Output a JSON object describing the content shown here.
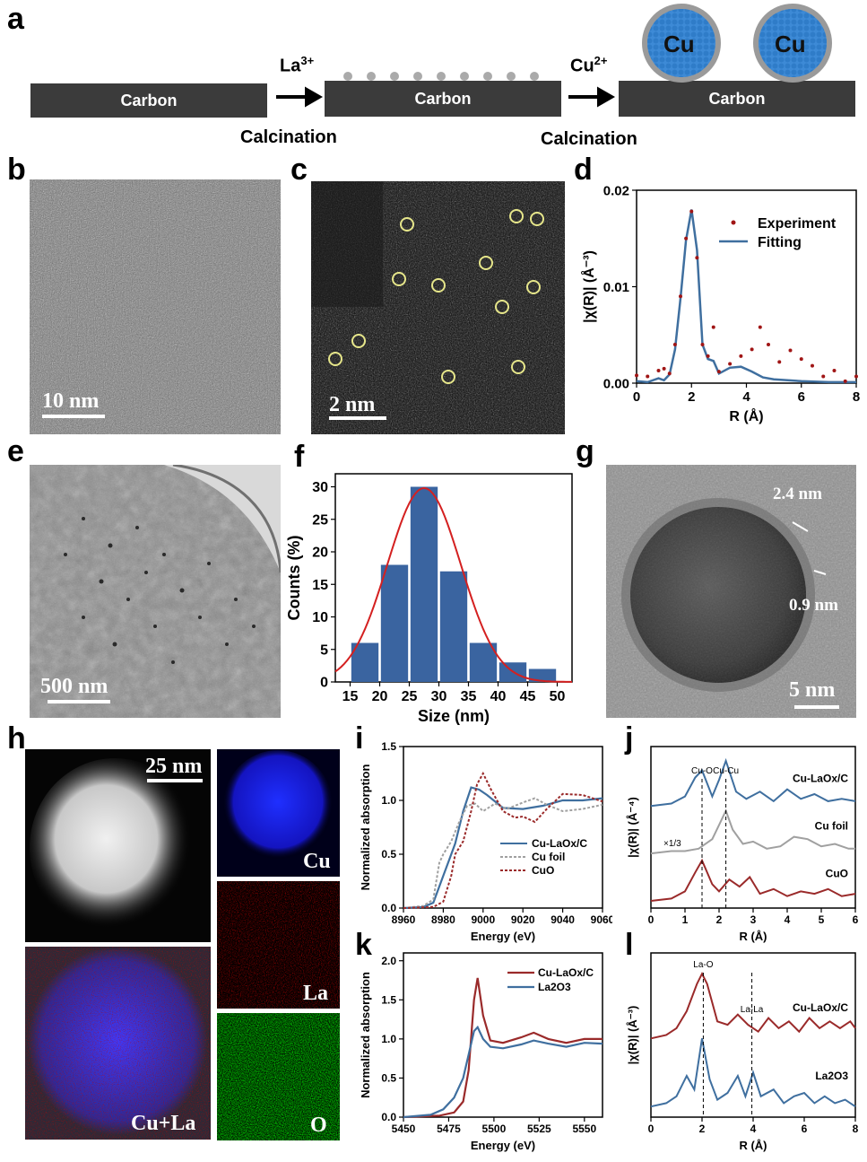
{
  "panels": {
    "a": "a",
    "b": "b",
    "c": "c",
    "d": "d",
    "e": "e",
    "f": "f",
    "g": "g",
    "h": "h",
    "i": "i",
    "j": "j",
    "k": "k",
    "l": "l"
  },
  "scheme": {
    "carbon_label": "Carbon",
    "ion1_base": "La",
    "ion1_sup": "3+",
    "ion2_base": "Cu",
    "ion2_sup": "2+",
    "step_label": "Calcination",
    "particle_label": "Cu"
  },
  "scalebars": {
    "b": "10 nm",
    "c": "2 nm",
    "e": "500 nm",
    "g": "5 nm",
    "h": "25 nm"
  },
  "panel_g": {
    "shell_label": "2.4 nm",
    "gap_label": "0.9 nm"
  },
  "panel_h": {
    "cu": "Cu",
    "la": "La",
    "o": "O",
    "overlay": "Cu+La"
  },
  "colors": {
    "blue": "#3f6f9f",
    "darkred": "#9a2a2a",
    "red_fit": "#d42020",
    "bar": "#3a64a0",
    "grey": "#a0a0a0",
    "experiment_dot": "#a01515"
  },
  "chart_data": [
    {
      "id": "d",
      "type": "line",
      "xlabel": "R (Å)",
      "ylabel": "|χ(R)| (Å⁻³)",
      "xlim": [
        0,
        8
      ],
      "ylim": [
        0,
        0.02
      ],
      "xticks": [
        "0",
        "2",
        "4",
        "6",
        "8"
      ],
      "yticks": [
        "0.00",
        "0.01",
        "0.02"
      ],
      "series": [
        {
          "name": "Experiment",
          "style": "dots",
          "x": [
            0,
            0.4,
            0.8,
            1.0,
            1.2,
            1.4,
            1.6,
            1.8,
            2.0,
            2.2,
            2.4,
            2.6,
            2.8,
            3.0,
            3.4,
            3.8,
            4.2,
            4.5,
            4.8,
            5.2,
            5.6,
            6.0,
            6.4,
            6.8,
            7.2,
            7.6,
            8.0
          ],
          "y": [
            0.0008,
            0.0007,
            0.0013,
            0.0015,
            0.001,
            0.004,
            0.009,
            0.015,
            0.0178,
            0.013,
            0.004,
            0.0028,
            0.0058,
            0.0012,
            0.002,
            0.0028,
            0.0035,
            0.0058,
            0.004,
            0.0022,
            0.0034,
            0.0025,
            0.0018,
            0.0007,
            0.0013,
            0.0002,
            0.0007
          ]
        },
        {
          "name": "Fitting",
          "style": "line",
          "x": [
            0,
            0.4,
            0.8,
            1.0,
            1.2,
            1.4,
            1.6,
            1.8,
            2.0,
            2.2,
            2.4,
            2.6,
            2.8,
            3.0,
            3.4,
            3.8,
            4.2,
            4.6,
            5.0,
            6.0,
            7.0,
            8.0
          ],
          "y": [
            0.0002,
            0.0001,
            0.0005,
            0.0003,
            0.0009,
            0.0035,
            0.0088,
            0.0148,
            0.018,
            0.0138,
            0.004,
            0.0025,
            0.0023,
            0.001,
            0.0016,
            0.0017,
            0.0012,
            0.0006,
            0.0004,
            0.0002,
            0.0001,
            0.0001
          ]
        }
      ]
    },
    {
      "id": "f",
      "type": "bar",
      "xlabel": "Size (nm)",
      "ylabel": "Counts (%)",
      "xlim": [
        12.5,
        52.5
      ],
      "ylim": [
        0,
        32
      ],
      "xticks": [
        "15",
        "20",
        "25",
        "30",
        "35",
        "40",
        "45",
        "50"
      ],
      "yticks": [
        "0",
        "5",
        "10",
        "15",
        "20",
        "25",
        "30"
      ],
      "categories": [
        17.5,
        22.5,
        27.5,
        32.5,
        37.5,
        42.5,
        47.5
      ],
      "values": [
        6,
        18,
        30,
        17,
        6,
        3,
        2
      ],
      "fit": {
        "name": "Gaussian fit",
        "mean": 27.5,
        "sigma": 6.2,
        "amplitude": 29.8
      }
    },
    {
      "id": "i",
      "type": "line",
      "xlabel": "Energy (eV)",
      "ylabel": "Normalized absorption",
      "xlim": [
        8960,
        9060
      ],
      "ylim": [
        0,
        1.5
      ],
      "xticks": [
        "8960",
        "8980",
        "9000",
        "9020",
        "9040",
        "9060"
      ],
      "yticks": [
        "0.0",
        "0.5",
        "1.0",
        "1.5"
      ],
      "series": [
        {
          "name": "Cu-LaOx/C",
          "style": "solid",
          "x": [
            8960,
            8970,
            8975,
            8980,
            8983,
            8986,
            8990,
            8994,
            8998,
            9002,
            9010,
            9020,
            9030,
            9040,
            9050,
            9060
          ],
          "y": [
            0.0,
            0.01,
            0.05,
            0.3,
            0.45,
            0.6,
            0.9,
            1.12,
            1.1,
            1.05,
            0.93,
            0.92,
            0.95,
            1.0,
            1.0,
            1.02
          ]
        },
        {
          "name": "Cu foil",
          "style": "dotted",
          "x": [
            8960,
            8970,
            8975,
            8978,
            8980,
            8984,
            8988,
            8992,
            8996,
            9000,
            9006,
            9012,
            9020,
            9026,
            9032,
            9040,
            9050,
            9060
          ],
          "y": [
            0.0,
            0.02,
            0.08,
            0.42,
            0.5,
            0.62,
            0.8,
            0.95,
            0.97,
            0.9,
            0.97,
            0.92,
            0.98,
            1.02,
            0.96,
            0.9,
            0.92,
            0.96
          ]
        },
        {
          "name": "CuO",
          "style": "dotted",
          "x": [
            8960,
            8975,
            8980,
            8984,
            8986,
            8990,
            8994,
            8997,
            9000,
            9004,
            9010,
            9016,
            9020,
            9026,
            9032,
            9040,
            9050,
            9060
          ],
          "y": [
            0.0,
            0.01,
            0.06,
            0.3,
            0.5,
            0.62,
            0.9,
            1.15,
            1.25,
            1.1,
            0.9,
            0.84,
            0.85,
            0.8,
            0.92,
            1.06,
            1.05,
            0.99
          ]
        }
      ]
    },
    {
      "id": "j",
      "type": "line",
      "xlabel": "R (Å)",
      "ylabel": "|χ(R)| (Å⁻⁴)",
      "xlim": [
        0,
        6
      ],
      "xticks": [
        "0",
        "1",
        "2",
        "3",
        "4",
        "5",
        "6"
      ],
      "annotations": [
        {
          "text": "Cu-O",
          "x": 1.5
        },
        {
          "text": "Cu-Cu",
          "x": 2.2
        },
        {
          "text": "×1/3"
        }
      ],
      "series": [
        {
          "name": "Cu-LaOx/C",
          "offset": 2.0,
          "x": [
            0,
            0.6,
            1.0,
            1.3,
            1.5,
            1.8,
            2.0,
            2.2,
            2.5,
            2.8,
            3.2,
            3.6,
            4.0,
            4.4,
            4.8,
            5.2,
            5.6,
            6.0
          ],
          "y": [
            0,
            0.05,
            0.2,
            0.6,
            0.75,
            0.2,
            0.55,
            0.95,
            0.3,
            0.15,
            0.3,
            0.1,
            0.35,
            0.15,
            0.25,
            0.1,
            0.15,
            0.1
          ]
        },
        {
          "name": "Cu foil",
          "offset": 1.0,
          "x": [
            0,
            0.6,
            1.0,
            1.4,
            1.8,
            2.0,
            2.2,
            2.4,
            2.7,
            3.0,
            3.4,
            3.8,
            4.2,
            4.6,
            5.0,
            5.4,
            5.8,
            6.0
          ],
          "y": [
            0,
            0.05,
            0.05,
            0.1,
            0.3,
            0.6,
            0.9,
            0.5,
            0.2,
            0.25,
            0.1,
            0.15,
            0.35,
            0.3,
            0.15,
            0.2,
            0.1,
            0.1
          ]
        },
        {
          "name": "CuO",
          "offset": 0.0,
          "x": [
            0,
            0.6,
            1.0,
            1.3,
            1.5,
            1.8,
            2.0,
            2.3,
            2.6,
            2.9,
            3.2,
            3.6,
            4.0,
            4.4,
            4.8,
            5.2,
            5.6,
            6.0
          ],
          "y": [
            0,
            0.05,
            0.2,
            0.6,
            0.85,
            0.35,
            0.2,
            0.45,
            0.3,
            0.5,
            0.15,
            0.25,
            0.1,
            0.2,
            0.15,
            0.25,
            0.1,
            0.15
          ]
        }
      ]
    },
    {
      "id": "k",
      "type": "line",
      "xlabel": "Energy (eV)",
      "ylabel": "Normalized absorption",
      "xlim": [
        5450,
        5560
      ],
      "ylim": [
        0,
        2.1
      ],
      "xticks": [
        "5450",
        "5475",
        "5500",
        "5525",
        "5550"
      ],
      "yticks": [
        "0.0",
        "0.5",
        "1.0",
        "1.5",
        "2.0"
      ],
      "series": [
        {
          "name": "Cu-LaOx/C",
          "x": [
            5450,
            5470,
            5478,
            5483,
            5486,
            5489,
            5491,
            5494,
            5498,
            5505,
            5515,
            5522,
            5530,
            5540,
            5550,
            5560
          ],
          "y": [
            0.0,
            0.02,
            0.06,
            0.2,
            0.6,
            1.5,
            1.78,
            1.3,
            0.98,
            0.95,
            1.02,
            1.08,
            1.0,
            0.95,
            1.0,
            1.0
          ]
        },
        {
          "name": "La2O3",
          "x": [
            5450,
            5465,
            5472,
            5478,
            5483,
            5486,
            5489,
            5491,
            5494,
            5498,
            5505,
            5515,
            5522,
            5530,
            5540,
            5550,
            5560
          ],
          "y": [
            0.0,
            0.03,
            0.1,
            0.25,
            0.5,
            0.8,
            1.1,
            1.15,
            1.0,
            0.9,
            0.88,
            0.93,
            0.98,
            0.94,
            0.9,
            0.95,
            0.94
          ]
        }
      ]
    },
    {
      "id": "l",
      "type": "line",
      "xlabel": "R (Å)",
      "ylabel": "|χ(R)| (Å⁻³)",
      "xlim": [
        0,
        8
      ],
      "xticks": [
        "0",
        "2",
        "4",
        "6",
        "8"
      ],
      "annotations": [
        {
          "text": "La-O",
          "x": 2.05
        },
        {
          "text": "La-La",
          "x": 3.95
        }
      ],
      "series": [
        {
          "name": "Cu-LaOx/C",
          "offset": 1.0,
          "x": [
            0,
            0.6,
            1.0,
            1.4,
            1.8,
            2.0,
            2.2,
            2.6,
            3.0,
            3.4,
            3.8,
            4.2,
            4.6,
            5.0,
            5.4,
            5.8,
            6.2,
            6.6,
            7.0,
            7.4,
            7.8,
            8.0
          ],
          "y": [
            0.05,
            0.1,
            0.2,
            0.45,
            0.85,
            1.0,
            0.85,
            0.3,
            0.25,
            0.4,
            0.25,
            0.15,
            0.35,
            0.2,
            0.3,
            0.15,
            0.35,
            0.2,
            0.3,
            0.2,
            0.3,
            0.2
          ]
        },
        {
          "name": "La2O3",
          "offset": 0.0,
          "x": [
            0,
            0.6,
            1.0,
            1.4,
            1.7,
            2.0,
            2.3,
            2.6,
            3.0,
            3.4,
            3.7,
            4.0,
            4.3,
            4.8,
            5.2,
            5.6,
            6.0,
            6.4,
            6.8,
            7.2,
            7.6,
            8.0
          ],
          "y": [
            0.05,
            0.1,
            0.2,
            0.5,
            0.3,
            1.05,
            0.45,
            0.15,
            0.25,
            0.5,
            0.2,
            0.55,
            0.2,
            0.3,
            0.1,
            0.2,
            0.25,
            0.1,
            0.2,
            0.1,
            0.15,
            0.05
          ]
        }
      ]
    }
  ]
}
